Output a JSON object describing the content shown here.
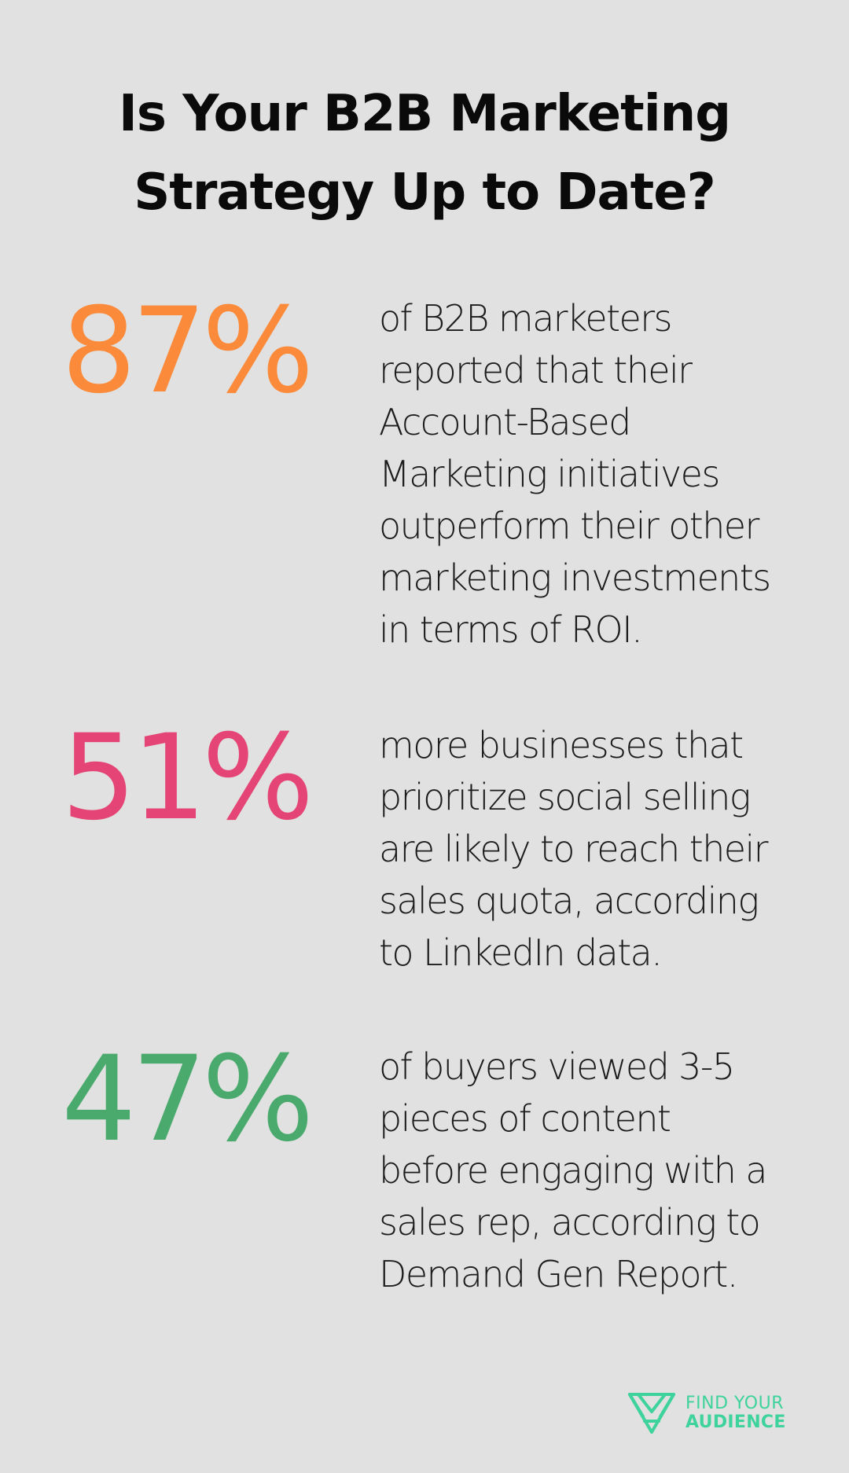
{
  "title": {
    "line1": "Is Your B2B Marketing",
    "line2": "Strategy Up to Date?"
  },
  "stats": [
    {
      "value": "87%",
      "color": "#fb8b3b",
      "text": "of B2B marketers reported that their Account-Based Marketing initiatives outperform their other marketing investments in terms of ROI."
    },
    {
      "value": "51%",
      "color": "#e54576",
      "text": "more businesses that prioritize social selling are likely to reach their sales quota, according to LinkedIn data."
    },
    {
      "value": "47%",
      "color": "#4aaa6d",
      "text": "of buyers viewed 3-5 pieces of content before engaging with a sales rep, according to Demand Gen Report."
    }
  ],
  "brand": {
    "line1": "FIND YOUR",
    "line2": "AUDIENCE",
    "color": "#3ed39c",
    "icon": "find-your-audience-logo"
  }
}
